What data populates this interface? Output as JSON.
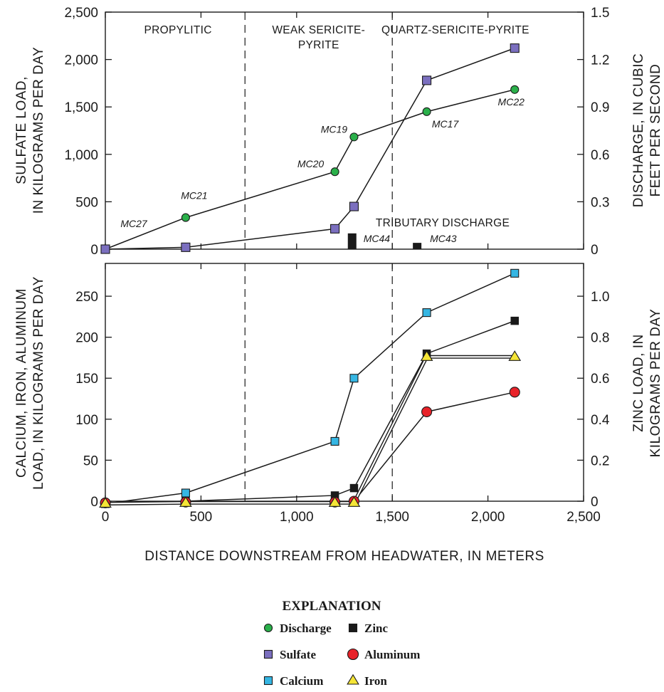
{
  "chart_data": [
    {
      "type": "line",
      "panel": "top",
      "xlabel": "DISTANCE DOWNSTREAM FROM HEADWATER, IN METERS",
      "ylabel_left": [
        "SULFATE LOAD,",
        "IN KILOGRAMS PER DAY"
      ],
      "ylabel_right": [
        "DISCHARGE, IN CUBIC",
        "FEET PER SECOND"
      ],
      "xlim": [
        0,
        2500
      ],
      "ylim_left": [
        0,
        2500
      ],
      "ylim_right": [
        0,
        1.5
      ],
      "x_ticks": [
        "0",
        "500",
        "1,000",
        "1,500",
        "2,000",
        "2,500"
      ],
      "x_tick_values": [
        0,
        500,
        1000,
        1500,
        2000,
        2500
      ],
      "y_ticks_left": [
        "0",
        "500",
        "1,000",
        "1,500",
        "2,000",
        "2,500"
      ],
      "y_tick_values_left": [
        0,
        500,
        1000,
        1500,
        2000,
        2500
      ],
      "y_ticks_right": [
        "0",
        "0.3",
        "0.6",
        "0.9",
        "1.2",
        "1.5"
      ],
      "y_tick_values_right": [
        0,
        0.3,
        0.6,
        0.9,
        1.2,
        1.5
      ],
      "zone_boundaries": [
        730,
        1500
      ],
      "zones": [
        {
          "lines": [
            "PROPYLITIC"
          ],
          "x": 380
        },
        {
          "lines": [
            "WEAK SERICITE-",
            "PYRITE"
          ],
          "x": 1115
        },
        {
          "lines": [
            "QUARTZ-SERICITE-PYRITE"
          ],
          "x": 1830
        }
      ],
      "tributary_label": "TRIBUTARY DISCHARGE",
      "series": [
        {
          "name": "Discharge",
          "axis": "right",
          "marker": "circle",
          "color": "#2ab04a",
          "x": [
            0,
            420,
            1200,
            1300,
            1680,
            2140
          ],
          "y": [
            0,
            0.2,
            0.49,
            0.71,
            0.87,
            1.01
          ]
        },
        {
          "name": "Sulfate",
          "axis": "left",
          "marker": "square",
          "color": "#7b6fbf",
          "x": [
            0,
            420,
            1200,
            1300,
            1680,
            2140
          ],
          "y": [
            0,
            20,
            215,
            450,
            1780,
            2120
          ]
        },
        {
          "name": "Tributary discharge",
          "axis": "right",
          "marker": "bar",
          "color": "#1a1a1a",
          "x": [
            1290,
            1630
          ],
          "y": [
            0.1,
            0.04
          ]
        }
      ],
      "annotations": [
        {
          "text": "MC27",
          "x": 0
        },
        {
          "text": "MC21",
          "x": 420
        },
        {
          "text": "MC20",
          "x": 1200
        },
        {
          "text": "MC19",
          "x": 1300
        },
        {
          "text": "MC17",
          "x": 1680
        },
        {
          "text": "MC22",
          "x": 2140
        },
        {
          "text": "MC44",
          "x": 1290
        },
        {
          "text": "MC43",
          "x": 1630
        }
      ]
    },
    {
      "type": "line",
      "panel": "bottom",
      "xlabel": "DISTANCE DOWNSTREAM FROM HEADWATER, IN METERS",
      "ylabel_left": [
        "CALCIUM, IRON, ALUMINUM",
        "LOAD, IN KILOGRAMS PER DAY"
      ],
      "ylabel_right": [
        "ZINC LOAD, IN",
        "KILOGRAMS PER DAY"
      ],
      "xlim": [
        0,
        2500
      ],
      "ylim_left": [
        0,
        290
      ],
      "ylim_right": [
        0,
        1.16
      ],
      "y_ticks_left": [
        "0",
        "50",
        "100",
        "150",
        "200",
        "250"
      ],
      "y_tick_values_left": [
        0,
        50,
        100,
        150,
        200,
        250
      ],
      "y_ticks_right": [
        "0",
        "0.2",
        "0.4",
        "0.6",
        "0.8",
        "1.0"
      ],
      "y_tick_values_right": [
        0,
        0.2,
        0.4,
        0.6,
        0.8,
        1.0
      ],
      "zone_boundaries": [
        730,
        1500
      ],
      "series": [
        {
          "name": "Calcium",
          "axis": "left",
          "marker": "square",
          "color": "#35b6e3",
          "x": [
            0,
            420,
            1200,
            1300,
            1680,
            2140
          ],
          "y": [
            -3,
            10,
            73,
            150,
            230,
            278
          ]
        },
        {
          "name": "Zinc",
          "axis": "right",
          "marker": "square",
          "color": "#1a1a1a",
          "x": [
            0,
            420,
            1200,
            1300,
            1680,
            2140
          ],
          "y": [
            -0.01,
            0,
            0.028,
            0.064,
            0.72,
            0.88
          ]
        },
        {
          "name": "Aluminum",
          "axis": "left",
          "marker": "circle",
          "color": "#e8232a",
          "x": [
            0,
            420,
            1200,
            1300,
            1680,
            2140
          ],
          "y": [
            -2,
            -1,
            -1,
            0,
            109,
            133
          ]
        },
        {
          "name": "Iron",
          "axis": "left",
          "marker": "triangle",
          "color": "#f5e536",
          "x": [
            0,
            420,
            1200,
            1300,
            1680,
            2140
          ],
          "y": [
            -3,
            -2,
            -2,
            -2,
            176,
            176
          ]
        }
      ]
    }
  ],
  "legend": {
    "title": "EXPLANATION",
    "items": [
      {
        "label": "Discharge",
        "marker": "circle",
        "color": "#2ab04a"
      },
      {
        "label": "Sulfate",
        "marker": "square",
        "color": "#7b6fbf"
      },
      {
        "label": "Calcium",
        "marker": "square",
        "color": "#35b6e3"
      },
      {
        "label": "Zinc",
        "marker": "square",
        "color": "#1a1a1a"
      },
      {
        "label": "Aluminum",
        "marker": "circle",
        "color": "#e8232a"
      },
      {
        "label": "Iron",
        "marker": "triangle",
        "color": "#f5e536"
      }
    ]
  }
}
